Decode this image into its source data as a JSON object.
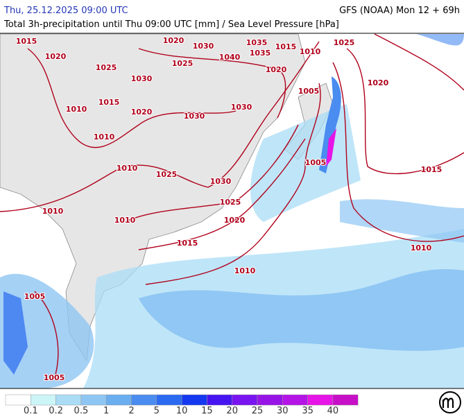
{
  "header": {
    "datetime": "Thu, 25.12.2025 09:00 UTC",
    "model": "GFS (NOAA) Mon 12 + 69h",
    "title": "Total 3h-precipitation until Thu 09:00 UTC [mm] / Sea Level Pressure [hPa]"
  },
  "isobar_labels": [
    "1015",
    "1020",
    "1030",
    "1035",
    "1015",
    "1010",
    "1025",
    "1040",
    "1035",
    "1020",
    "1025",
    "1025",
    "1020",
    "1030",
    "1020",
    "1005",
    "1015",
    "1010",
    "1020",
    "1030",
    "1030",
    "1010",
    "1005",
    "1010",
    "1025",
    "1030",
    "1015",
    "1025",
    "1010",
    "1010",
    "1020",
    "1015",
    "1010",
    "1010",
    "1005",
    "1005"
  ],
  "legend": {
    "colors": [
      "#ffffff",
      "#ccf5f8",
      "#aadcf5",
      "#8ec6f3",
      "#6aaef0",
      "#4a8cf0",
      "#2a6af0",
      "#1438f0",
      "#4614f0",
      "#7814f0",
      "#9614e6",
      "#b414e6",
      "#e614e6",
      "#c80fc8"
    ],
    "labels": [
      "0.1",
      "0.2",
      "0.5",
      "1",
      "2",
      "5",
      "10",
      "15",
      "20",
      "25",
      "30",
      "35",
      "40"
    ]
  }
}
